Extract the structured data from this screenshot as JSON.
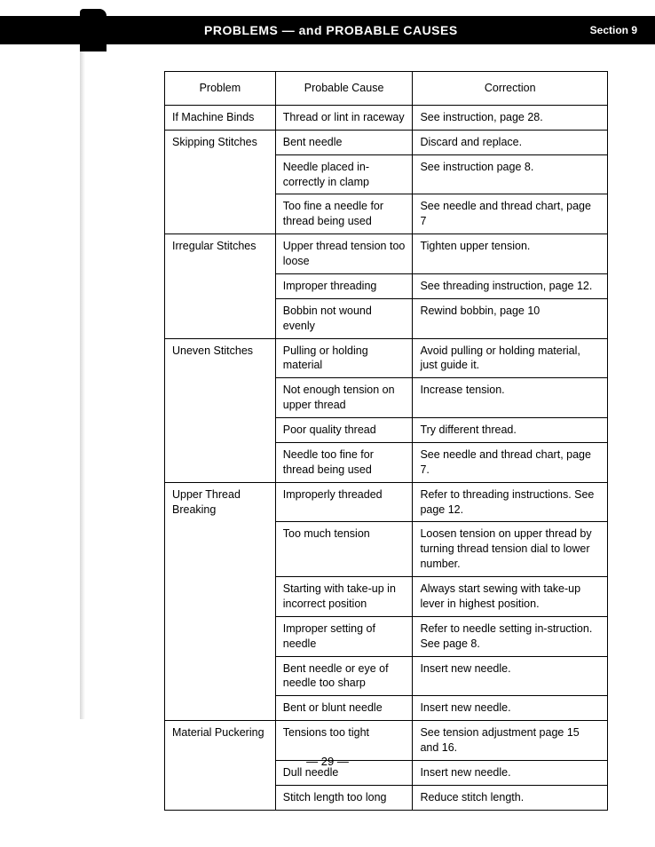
{
  "header": {
    "title": "PROBLEMS — and PROBABLE CAUSES",
    "section": "Section 9"
  },
  "table": {
    "columns": [
      "Problem",
      "Probable Cause",
      "Correction"
    ],
    "groups": [
      {
        "problem": "If Machine Binds",
        "rows": [
          {
            "cause": "Thread or lint in raceway",
            "correction": "See instruction, page 28."
          }
        ]
      },
      {
        "problem": "Skipping Stitches",
        "rows": [
          {
            "cause": "Bent needle",
            "correction": "Discard and replace."
          },
          {
            "cause": "Needle placed in-correctly in clamp",
            "correction": "See instruction page 8."
          },
          {
            "cause": "Too fine a needle for thread being used",
            "correction": "See needle and thread chart, page 7"
          }
        ]
      },
      {
        "problem": "Irregular Stitches",
        "rows": [
          {
            "cause": "Upper thread tension too loose",
            "correction": "Tighten upper tension."
          },
          {
            "cause": "Improper threading",
            "correction": "See threading instruction, page 12."
          },
          {
            "cause": "Bobbin not wound evenly",
            "correction": "Rewind bobbin, page 10"
          }
        ]
      },
      {
        "problem": "Uneven Stitches",
        "rows": [
          {
            "cause": "Pulling or holding material",
            "correction": "Avoid pulling or holding material, just guide it."
          },
          {
            "cause": "Not enough tension on upper thread",
            "correction": "Increase tension."
          },
          {
            "cause": "Poor quality thread",
            "correction": "Try different thread."
          },
          {
            "cause": "Needle too fine for thread being used",
            "correction": "See needle and thread chart, page 7."
          }
        ]
      },
      {
        "problem": "Upper Thread Breaking",
        "rows": [
          {
            "cause": "Improperly threaded",
            "correction": "Refer to threading instructions. See page 12."
          },
          {
            "cause": "Too much tension",
            "correction": "Loosen tension on upper thread by turning thread tension dial to lower number."
          },
          {
            "cause": "Starting with take-up in incorrect position",
            "correction": "Always start sewing with take-up lever in highest position."
          },
          {
            "cause": "Improper setting of needle",
            "correction": "Refer to needle setting in-struction. See page 8."
          },
          {
            "cause": "Bent needle or eye of needle too sharp",
            "correction": "Insert new needle."
          },
          {
            "cause": "Bent or blunt needle",
            "correction": "Insert new needle."
          }
        ]
      },
      {
        "problem": "Material Puckering",
        "rows": [
          {
            "cause": "Tensions too tight",
            "correction": "See tension adjustment page 15 and 16."
          },
          {
            "cause": "Dull needle",
            "correction": "Insert new needle."
          },
          {
            "cause": "Stitch length too long",
            "correction": "Reduce stitch length."
          }
        ]
      }
    ]
  },
  "page_number": "— 29 —"
}
